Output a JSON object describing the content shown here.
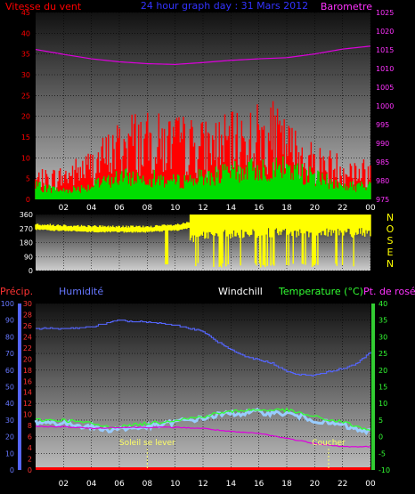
{
  "chart_data": [
    {
      "type": "line",
      "title": "24 hour graph day : 31 Mars 2012",
      "left_label": "Vitesse du vent",
      "right_label": "Barometre",
      "x_ticks": [
        "02",
        "04",
        "06",
        "08",
        "10",
        "12",
        "14",
        "16",
        "18",
        "20",
        "22",
        "00"
      ],
      "y_left_ticks": [
        "0",
        "5",
        "10",
        "15",
        "20",
        "25",
        "30",
        "35",
        "40",
        "45"
      ],
      "y_left_range": [
        0,
        45
      ],
      "y_right_ticks": [
        "975",
        "980",
        "985",
        "990",
        "995",
        "1000",
        "1005",
        "1010",
        "1015",
        "1020",
        "1025"
      ],
      "y_right_range": [
        975,
        1025
      ],
      "grid": true,
      "colors": {
        "wind_gust": "#ff0000",
        "wind_avg": "#00dd00",
        "baro": "#dd00dd",
        "title": "#3333ff",
        "left_axis": "#ff0000",
        "right_axis": "#ff33ff"
      },
      "series": [
        {
          "name": "Vitesse du vent",
          "x": [
            0,
            2,
            4,
            6,
            7,
            8,
            10,
            12,
            14,
            16,
            17,
            18,
            20,
            22,
            24
          ],
          "y": [
            5,
            6,
            9,
            14,
            16,
            15,
            15,
            14,
            15,
            17,
            17,
            14,
            10,
            8,
            7
          ]
        },
        {
          "name": "",
          "x": [
            0,
            2,
            4,
            6,
            8,
            10,
            12,
            14,
            16,
            18,
            20,
            22,
            24
          ],
          "y": [
            3,
            2,
            3,
            5,
            5,
            4,
            5,
            6,
            7,
            7,
            5,
            3,
            3
          ]
        },
        {
          "name": "Barometre",
          "x": [
            0,
            2,
            4,
            6,
            8,
            10,
            12,
            14,
            16,
            18,
            20,
            22,
            24
          ],
          "y": [
            1015.1,
            1013.8,
            1012.6,
            1011.8,
            1011.3,
            1011.1,
            1011.6,
            1012.2,
            1012.6,
            1012.9,
            1013.9,
            1015.2,
            1016.0
          ]
        }
      ]
    },
    {
      "type": "line",
      "y_left_ticks": [
        "0",
        "90",
        "180",
        "270",
        "360"
      ],
      "y_left_range": [
        0,
        360
      ],
      "right_labels": [
        "N",
        "O",
        "S",
        "E",
        "N"
      ],
      "grid": true,
      "colors": {
        "dir": "#ffff00",
        "left_axis": "#ffffff",
        "right_axis": "#ffff00"
      },
      "series": [
        {
          "name": "",
          "x": [
            0,
            3,
            6,
            8,
            10,
            12,
            14,
            16,
            18,
            20,
            22,
            24
          ],
          "y": [
            285,
            275,
            270,
            270,
            280,
            310,
            325,
            330,
            335,
            330,
            330,
            335
          ]
        }
      ]
    },
    {
      "type": "line",
      "precip_label": "Précip.",
      "humidity_label": "Humidité",
      "windchill_label": "Windchill",
      "temp_label": "Temperature (°C)",
      "dew_label": "Pt. de rosée",
      "x_ticks": [
        "02",
        "04",
        "06",
        "08",
        "10",
        "12",
        "14",
        "16",
        "18",
        "20",
        "22",
        "00"
      ],
      "humidity_ticks": [
        "0",
        "10",
        "20",
        "30",
        "40",
        "50",
        "60",
        "70",
        "80",
        "90",
        "100"
      ],
      "precip_ticks": [
        "0",
        "2",
        "4",
        "6",
        "8",
        "10",
        "12",
        "14",
        "16",
        "18",
        "20",
        "22",
        "24",
        "26",
        "28",
        "30"
      ],
      "temp_ticks": [
        "-10",
        "-5",
        "0",
        "5",
        "10",
        "15",
        "20",
        "25",
        "30",
        "35",
        "40"
      ],
      "temp_range": [
        -10,
        40
      ],
      "humidity_range": [
        0,
        100
      ],
      "precip_range": [
        0,
        30
      ],
      "sunrise_label": "Soleil se lever",
      "sunset_label": "Coucher",
      "sunrise_hour": 8.0,
      "sunset_hour": 21.0,
      "grid": true,
      "colors": {
        "humidity": "#5566ff",
        "windchill": "#99ccff",
        "temp": "#33ff33",
        "dew": "#dd00dd",
        "precip": "#ff0000",
        "sun": "#ffff66",
        "precip_axis": "#ff3333",
        "humidity_axis": "#6677ff",
        "temp_axis": "#33ff33"
      },
      "series": [
        {
          "name": "Humidité",
          "x": [
            0,
            2,
            4,
            5,
            6,
            7,
            8,
            9,
            10,
            11,
            12,
            13,
            14,
            15,
            16,
            17,
            18,
            19,
            20,
            21,
            22,
            23,
            24
          ],
          "y": [
            85,
            85,
            86,
            88,
            90,
            89,
            89,
            88,
            87,
            85,
            83,
            77,
            72,
            68,
            66,
            64,
            59,
            57,
            57,
            59,
            61,
            64,
            71
          ]
        },
        {
          "name": "Temperature (°C)",
          "x": [
            0,
            2,
            4,
            5,
            6,
            7,
            8,
            9,
            10,
            11,
            12,
            13,
            14,
            15,
            16,
            17,
            18,
            19,
            20,
            21,
            22,
            23,
            24
          ],
          "y": [
            5,
            5,
            4,
            3,
            3,
            3.5,
            4,
            4.5,
            5,
            5.5,
            6,
            7,
            7.5,
            8,
            8,
            8,
            8,
            7,
            6,
            5,
            4.5,
            3,
            2
          ]
        },
        {
          "name": "Windchill",
          "x": [
            0,
            2,
            4,
            5,
            6,
            7,
            8,
            9,
            10,
            11,
            12,
            13,
            14,
            15,
            16,
            17,
            18,
            19,
            20,
            21,
            22,
            23,
            24
          ],
          "y": [
            4.5,
            4,
            3,
            2,
            2.5,
            2.5,
            3,
            3.5,
            4.5,
            5,
            5.5,
            6.5,
            7,
            7,
            7.5,
            7,
            7,
            6,
            5,
            4,
            3.5,
            2,
            1.5
          ]
        },
        {
          "name": "Pt. de rosée",
          "x": [
            0,
            2,
            4,
            6,
            8,
            10,
            12,
            14,
            16,
            18,
            20,
            22,
            24
          ],
          "y": [
            3,
            3,
            2.5,
            2.8,
            2.8,
            2.8,
            2.5,
            1.5,
            1,
            -0.5,
            -2,
            -3,
            -3
          ]
        },
        {
          "name": "Précip.",
          "x": [
            0,
            24
          ],
          "y": [
            0,
            0
          ]
        }
      ]
    }
  ]
}
